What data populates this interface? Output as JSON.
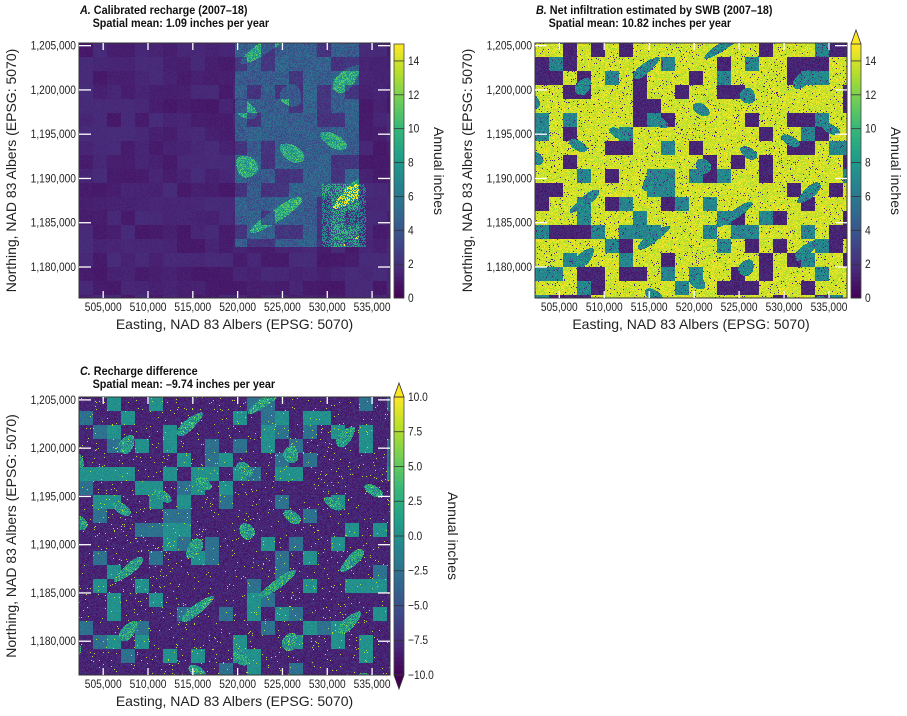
{
  "chart_data": [
    {
      "type": "heatmap",
      "panel": "A",
      "title_letter": "A.",
      "title": "Calibrated recharge (2007–18)",
      "subtitle": "Spatial mean: 1.09 inches per year",
      "xlabel": "Easting, NAD 83 Albers (EPSG: 5070)",
      "ylabel": "Northing,  NAD 83 Albers (EPSG: 5070)",
      "xticks": [
        "505,000",
        "510,000",
        "515,000",
        "520,000",
        "525,000",
        "530,000",
        "535,000"
      ],
      "xtick_values": [
        505000,
        510000,
        515000,
        520000,
        525000,
        530000,
        535000
      ],
      "yticks": [
        "1,180,000",
        "1,185,000",
        "1,190,000",
        "1,195,000",
        "1,200,000",
        "1,205,000"
      ],
      "ytick_values": [
        1180000,
        1185000,
        1190000,
        1195000,
        1200000,
        1205000
      ],
      "xlim": [
        502300,
        537000
      ],
      "ylim": [
        1176500,
        1205300
      ],
      "colorbar": {
        "label": "Annual inches",
        "range": [
          0,
          15
        ],
        "ticks": [
          "0",
          "2",
          "4",
          "6",
          "8",
          "10",
          "12",
          "14"
        ],
        "tick_values": [
          0,
          2,
          4,
          6,
          8,
          10,
          12,
          14
        ],
        "extend": "neither",
        "colormap": "viridis"
      }
    },
    {
      "type": "heatmap",
      "panel": "B",
      "title_letter": "B.",
      "title": "Net infiltration estimated by SWB (2007–18)",
      "subtitle": "Spatial mean: 10.82 inches per year",
      "xlabel": "Easting, NAD 83 Albers (EPSG: 5070)",
      "ylabel": "Northing,  NAD 83 Albers (EPSG: 5070)",
      "xticks": [
        "505,000",
        "510,000",
        "515,000",
        "520,000",
        "525,000",
        "530,000",
        "535,000"
      ],
      "xtick_values": [
        505000,
        510000,
        515000,
        520000,
        525000,
        530000,
        535000
      ],
      "yticks": [
        "1,180,000",
        "1,185,000",
        "1,190,000",
        "1,195,000",
        "1,200,000",
        "1,205,000"
      ],
      "ytick_values": [
        1180000,
        1185000,
        1190000,
        1195000,
        1200000,
        1205000
      ],
      "xlim": [
        502300,
        537000
      ],
      "ylim": [
        1176500,
        1205300
      ],
      "colorbar": {
        "label": "Annual inches",
        "range": [
          0,
          15
        ],
        "ticks": [
          "0",
          "2",
          "4",
          "6",
          "8",
          "10",
          "12",
          "14"
        ],
        "tick_values": [
          0,
          2,
          4,
          6,
          8,
          10,
          12,
          14
        ],
        "extend": "max",
        "colormap": "viridis"
      }
    },
    {
      "type": "heatmap",
      "panel": "C",
      "title_letter": "C.",
      "title": "Recharge difference",
      "subtitle": "Spatial mean: –9.74 inches per year",
      "xlabel": "Easting, NAD 83 Albers (EPSG: 5070)",
      "ylabel": "Northing,  NAD 83 Albers (EPSG: 5070)",
      "xticks": [
        "505,000",
        "510,000",
        "515,000",
        "520,000",
        "525,000",
        "530,000",
        "535,000"
      ],
      "xtick_values": [
        505000,
        510000,
        515000,
        520000,
        525000,
        530000,
        535000
      ],
      "yticks": [
        "1,180,000",
        "1,185,000",
        "1,190,000",
        "1,195,000",
        "1,200,000",
        "1,205,000"
      ],
      "ytick_values": [
        1180000,
        1185000,
        1190000,
        1195000,
        1200000,
        1205000
      ],
      "xlim": [
        502300,
        537000
      ],
      "ylim": [
        1176500,
        1205300
      ],
      "colorbar": {
        "label": "Annual inches",
        "range": [
          -10,
          10
        ],
        "ticks": [
          "−10.0",
          "−7.5",
          "−5.0",
          "−2.5",
          "0.0",
          "2.5",
          "5.0",
          "7.5",
          "10.0"
        ],
        "tick_values": [
          -10,
          -7.5,
          -5,
          -2.5,
          0,
          2.5,
          5,
          7.5,
          10
        ],
        "extend": "both",
        "colormap": "viridis"
      }
    }
  ]
}
